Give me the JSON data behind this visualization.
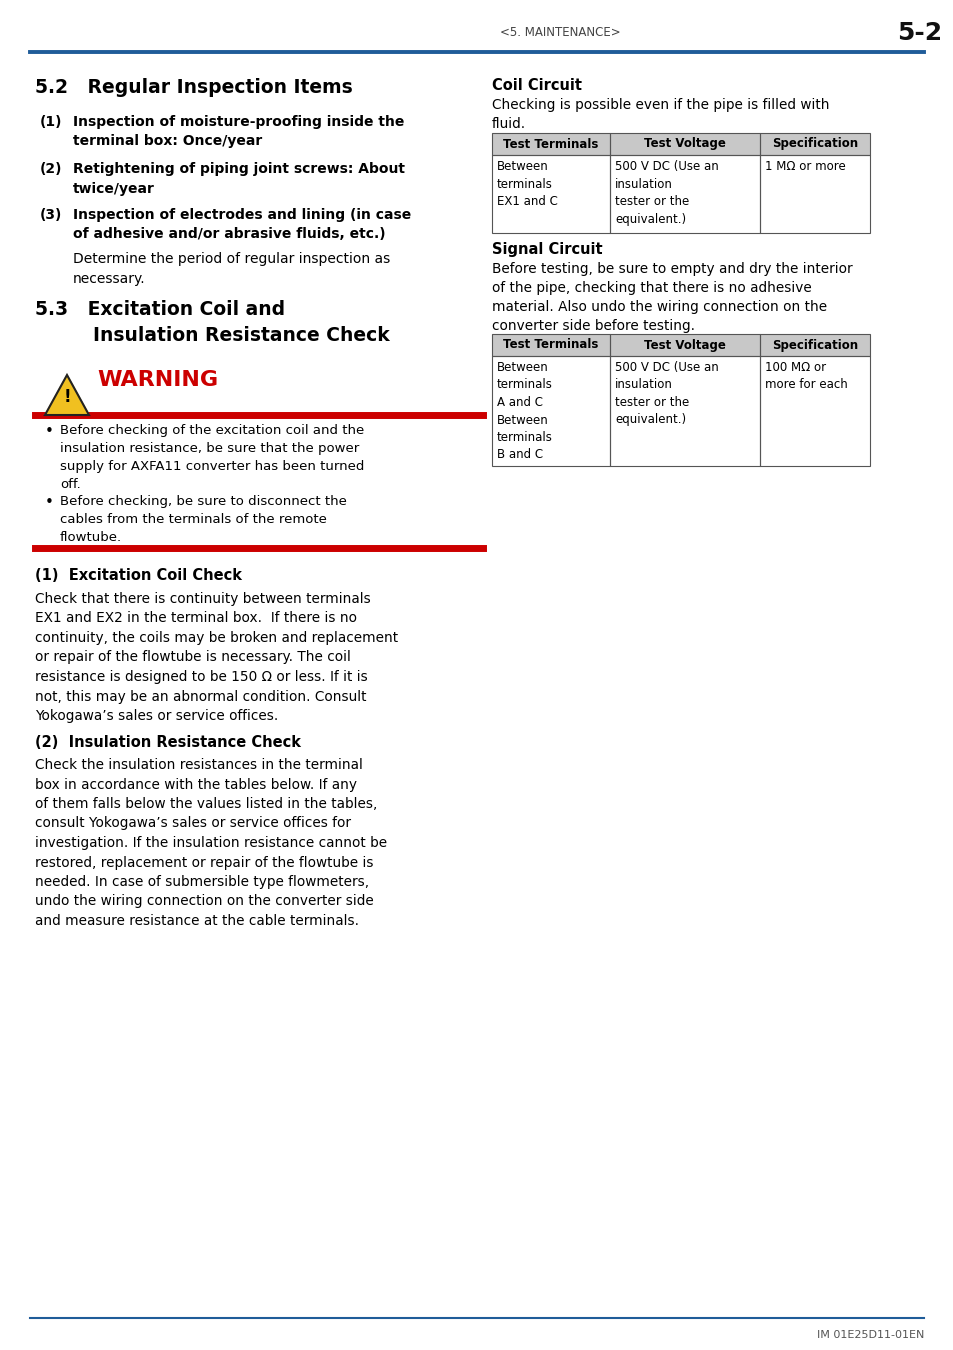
{
  "page_header_center": "<5. MAINTENANCE>",
  "page_header_right": "5-2",
  "header_line_color": "#1f5c99",
  "footer_line_color": "#1f5c99",
  "footer_text": "IM 01E25D11-01EN",
  "warning_bar_color": "#cc0000",
  "warning_text_color": "#cc0000",
  "bg_color": "#ffffff",
  "text_color": "#000000",
  "table_header_bg": "#c8c8c8",
  "table_border_color": "#555555",
  "coil_table_headers": [
    "Test Terminals",
    "Test Voltage",
    "Specification"
  ],
  "coil_table_rows": [
    [
      "Between\nterminals\nEX1 and C",
      "500 V DC (Use an\ninsulation\ntester or the\nequivalent.)",
      "1 MΩ or more"
    ]
  ],
  "signal_table_headers": [
    "Test Terminals",
    "Test Voltage",
    "Specification"
  ],
  "signal_table_rows": [
    [
      "Between\nterminals\nA and C\nBetween\nterminals\nB and C",
      "500 V DC (Use an\ninsulation\ntester or the\nequivalent.)",
      "100 MΩ or\nmore for each"
    ]
  ]
}
